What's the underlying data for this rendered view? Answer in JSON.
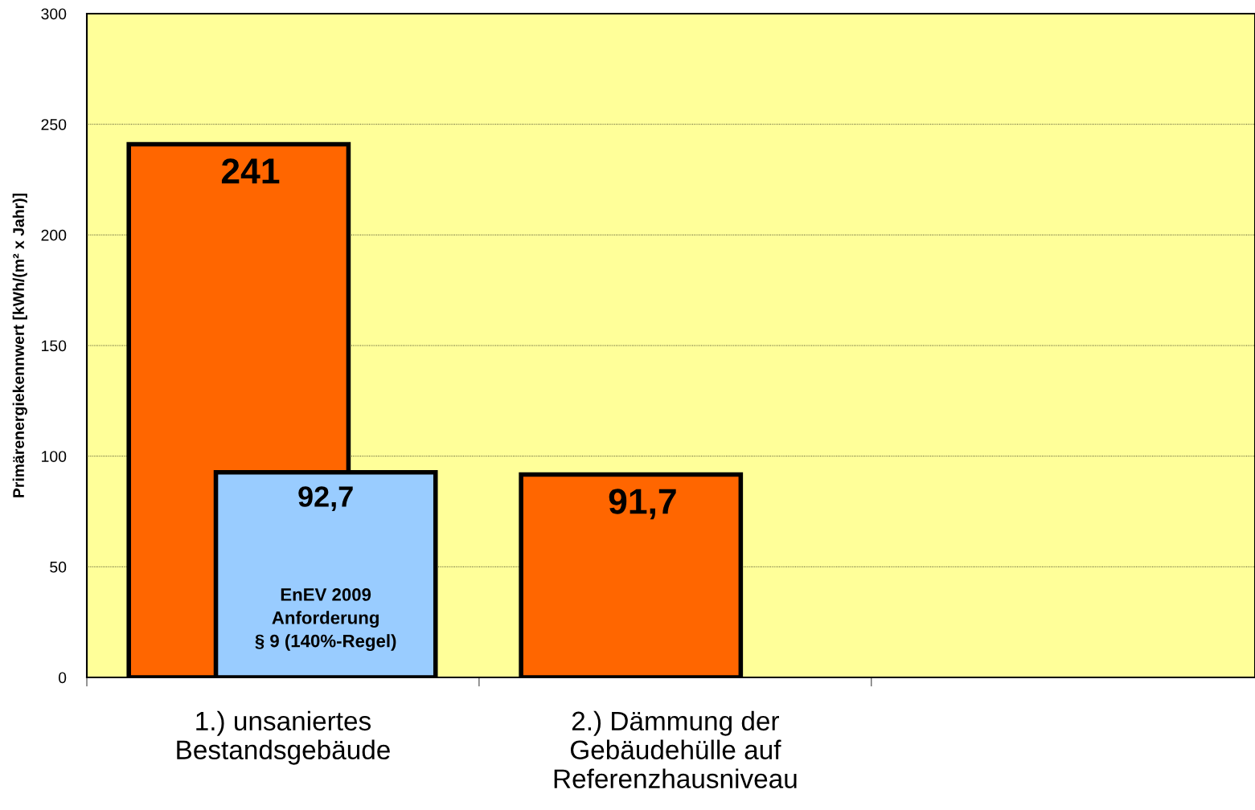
{
  "chart_data": {
    "type": "bar",
    "ylabel": "Primärenergiekennwert [kWh/(m² x Jahr)]",
    "categories": [
      "1.) unsaniertes\nBestandsgebäude",
      "2.) Dämmung der\nGebäudehülle auf\nReferenzhausniveau",
      null
    ],
    "series": [
      {
        "color": "#ff6600",
        "values": [
          241,
          91.7,
          null
        ],
        "value_labels": [
          "241",
          "91,7",
          null
        ]
      },
      {
        "color": "#99ccff",
        "values": [
          92.7,
          null,
          null
        ],
        "value_labels": [
          "92,7",
          null,
          null
        ]
      }
    ],
    "annotations": [
      "EnEV 2009\nAnforderung\n§ 9 (140%-Regel)"
    ],
    "ylim": [
      0,
      300
    ],
    "yticks": [
      0,
      50,
      100,
      150,
      200,
      250,
      300
    ],
    "grid": "y"
  }
}
